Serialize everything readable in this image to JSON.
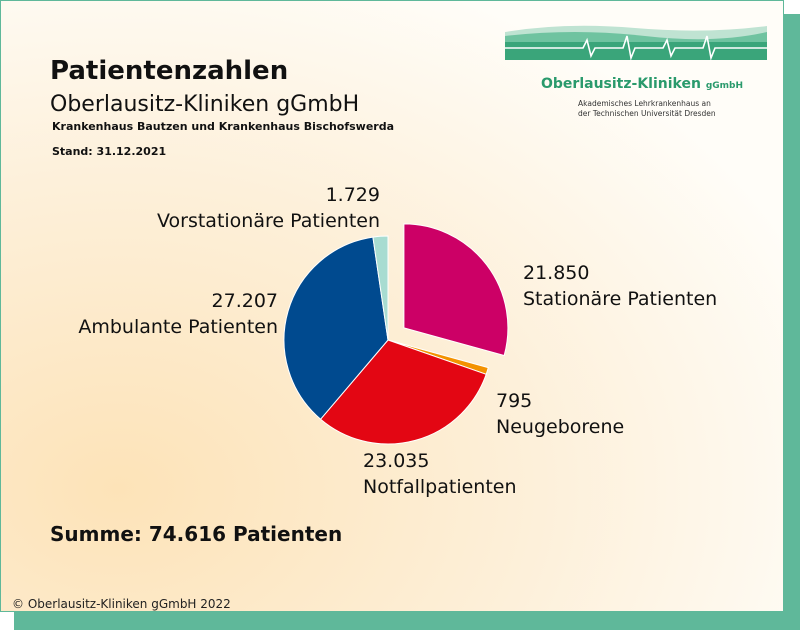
{
  "header": {
    "title": "Patientenzahlen",
    "subtitle": "Oberlausitz-Kliniken gGmbH",
    "hospitals": "Krankenhaus Bautzen und Krankenhaus Bischofswerda",
    "date": "Stand: 31.12.2021"
  },
  "logo": {
    "name": "Oberlausitz-Kliniken",
    "suffix": "gGmbH",
    "tagline_line1": "Akademisches Lehrkrankenhaus an",
    "tagline_line2": "der Technischen Universität Dresden",
    "color": "#2a9a6c"
  },
  "chart_data": {
    "type": "pie",
    "slices": [
      {
        "label": "Stationäre Patienten",
        "value": 21850,
        "value_label": "21.850",
        "color": "#cc0066",
        "exploded": true
      },
      {
        "label": "Neugeborene",
        "value": 795,
        "value_label": "795",
        "color": "#f39200",
        "exploded": false
      },
      {
        "label": "Notfallpatienten",
        "value": 23035,
        "value_label": "23.035",
        "color": "#e30613",
        "exploded": false
      },
      {
        "label": "Ambulante Patienten",
        "value": 27207,
        "value_label": "27.207",
        "color": "#004a8f",
        "exploded": false
      },
      {
        "label": "Vorstationäre Patienten",
        "value": 1729,
        "value_label": "1.729",
        "color": "#a8dcd1",
        "exploded": false
      }
    ]
  },
  "summary": "Summe: 74.616 Patienten",
  "copyright": "© Oberlausitz-Kliniken gGmbH 2022"
}
